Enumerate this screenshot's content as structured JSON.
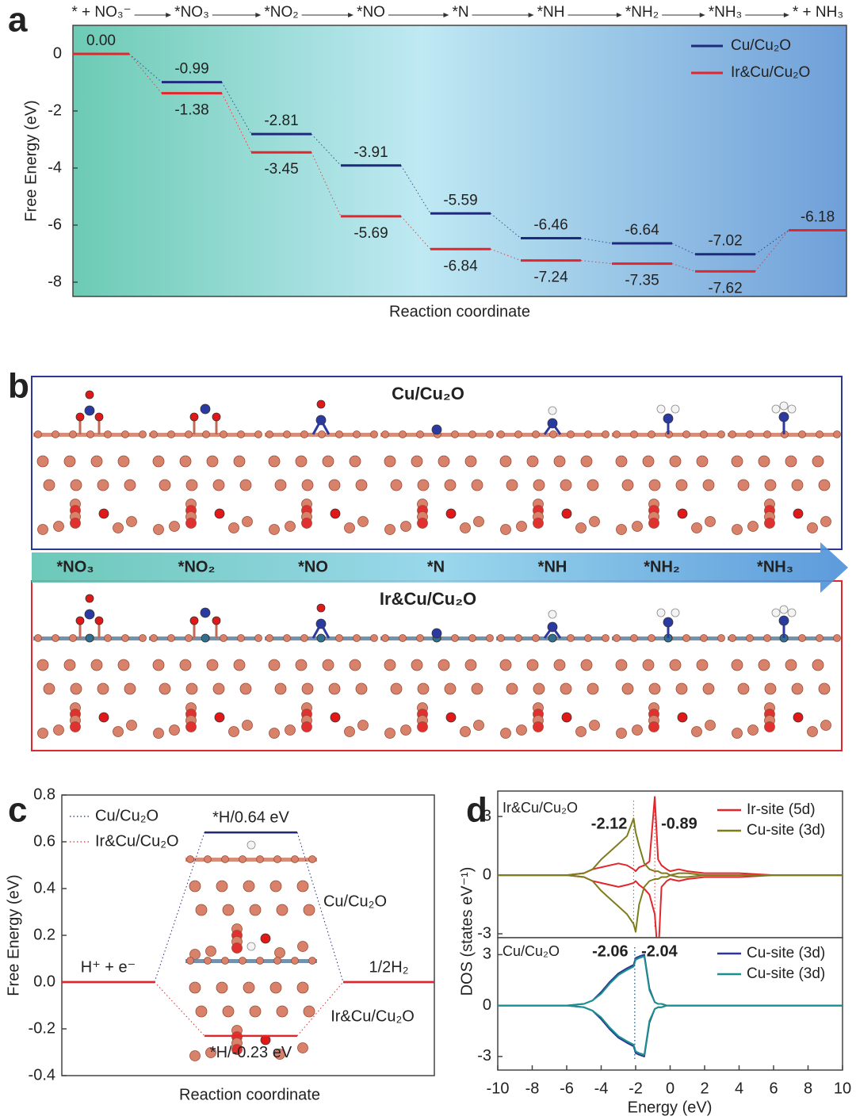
{
  "panel_labels": [
    "a",
    "b",
    "c",
    "d"
  ],
  "chart_data": [
    {
      "type": "energy_diagram",
      "categories": [
        "* + NO₃⁻",
        "*NO₃",
        "*NO₂",
        "*NO",
        "*N",
        "*NH",
        "*NH₂",
        "*NH₃",
        "* + NH₃"
      ],
      "ylabel": "Free Energy (eV)",
      "xlabel": "Reaction coordinate",
      "ylim": [
        -8.5,
        1.0
      ],
      "yticks": [
        -8,
        -6,
        -4,
        -2,
        0
      ],
      "legend": "upper right",
      "series": [
        {
          "name": "Cu/Cu₂O",
          "color": "#1f2a7c",
          "values": [
            0,
            -0.99,
            -2.81,
            -3.91,
            -5.59,
            -6.46,
            -6.64,
            -7.02,
            -6.18
          ],
          "value_labels": [
            null,
            "-0.99",
            "-2.81",
            "-3.91",
            "-5.59",
            "-6.46",
            "-6.64",
            "-7.02",
            null
          ]
        },
        {
          "name": "Ir&Cu/Cu₂O",
          "color": "#e3262b",
          "values": [
            0,
            -1.38,
            -3.45,
            -5.69,
            -6.84,
            -7.24,
            -7.35,
            -7.62,
            -6.18
          ],
          "value_labels": [
            "0.00",
            "-1.38",
            "-3.45",
            "-5.69",
            "-6.84",
            "-7.24",
            "-7.35",
            "-7.62",
            "-6.18"
          ]
        }
      ]
    },
    {
      "type": "energy_diagram",
      "categories": [
        "H⁺ + e⁻",
        null,
        "1/2H₂"
      ],
      "ylabel": "Free Energy (eV)",
      "xlabel": "Reaction coordinate",
      "ylim": [
        -0.4,
        0.8
      ],
      "yticks": [
        -0.4,
        -0.2,
        {
          "value": 0,
          "label": "0.0"
        },
        0.2,
        0.4,
        0.6,
        0.8
      ],
      "legend": "upper left",
      "structure_labels": [
        "Cu/Cu₂O",
        "Ir&Cu/Cu₂O"
      ],
      "series": [
        {
          "name": "Cu/Cu₂O",
          "color": "#1f2a7c",
          "values": [
            0,
            0.64,
            0
          ],
          "value_labels": [
            null,
            "*H/0.64 eV",
            null
          ]
        },
        {
          "name": "Ir&Cu/Cu₂O",
          "color": "#e3262b",
          "values": [
            0,
            -0.23,
            0
          ],
          "value_labels": [
            null,
            "*H/-0.23 eV",
            null
          ]
        }
      ]
    },
    {
      "type": "dos",
      "xlabel": "Energy (eV)",
      "ylabel": "DOS (states eV⁻¹)",
      "xlim": [
        -10,
        10
      ],
      "xticks": [
        -10,
        -8,
        -6,
        -4,
        -2,
        0,
        2,
        4,
        6,
        8,
        10
      ],
      "x": [
        -10,
        -6,
        -5,
        -4.5,
        -4,
        -3.5,
        -3,
        -2.5,
        -2.12,
        -2,
        -1.8,
        -1.5,
        -1.2,
        -0.89,
        -0.7,
        -0.5,
        -0.2,
        0,
        0.5,
        1,
        2,
        4,
        6,
        8,
        10
      ],
      "panels": [
        {
          "title": "Ir&Cu/Cu₂O",
          "ylim": [
            -3.2,
            4.3
          ],
          "yticks": [
            -3,
            0,
            3
          ],
          "series": [
            {
              "name": "Ir-site (5d)",
              "color": "#e3262b",
              "peak": -0.89,
              "values": [
                0,
                0,
                0.1,
                0.3,
                0.4,
                0.5,
                0.6,
                0.5,
                0.3,
                0.2,
                0.4,
                0.5,
                0.7,
                4.0,
                0.8,
                0.5,
                0.3,
                0.2,
                0.3,
                0.2,
                0.1,
                0.1,
                0,
                0,
                0
              ],
              "values_down": [
                0,
                0,
                -0.1,
                -0.3,
                -0.4,
                -0.5,
                -0.6,
                -0.5,
                -0.4,
                -0.3,
                -0.5,
                -0.7,
                -1.0,
                -2.0,
                -4.3,
                -0.6,
                -0.3,
                -0.2,
                -0.3,
                -0.2,
                -0.1,
                -0.1,
                0,
                0,
                0
              ]
            },
            {
              "name": "Cu-site (3d)",
              "color": "#7d7d1e",
              "peak": -2.12,
              "values": [
                0,
                0,
                0.1,
                0.3,
                0.8,
                1.2,
                1.6,
                2.0,
                2.9,
                2.2,
                1.5,
                0.6,
                0.3,
                0.2,
                0.2,
                0.1,
                0.1,
                0,
                0.1,
                0.1,
                0,
                0,
                0,
                0,
                0
              ],
              "values_down": [
                0,
                0,
                -0.1,
                -0.3,
                -0.8,
                -1.2,
                -1.6,
                -2.0,
                -2.5,
                -2.9,
                -1.5,
                -0.6,
                -0.3,
                -0.2,
                -0.2,
                -0.1,
                -0.1,
                0,
                -0.1,
                -0.1,
                0,
                0,
                0,
                0,
                0
              ]
            }
          ]
        },
        {
          "title": "Cu/Cu₂O",
          "ylim": [
            -3.8,
            4.0
          ],
          "yticks": [
            -3,
            0,
            3
          ],
          "series": [
            {
              "name": "Cu-site (3d)",
              "color": "#2b3990",
              "peak": -2.06,
              "values": [
                0,
                0,
                0.1,
                0.3,
                0.8,
                1.4,
                1.9,
                2.2,
                2.4,
                2.8,
                2.9,
                3.0,
                1.0,
                0.2,
                0.1,
                0.1,
                0,
                0,
                0,
                0,
                0,
                0,
                0,
                0,
                0
              ],
              "values_down": [
                0,
                0,
                -0.1,
                -0.3,
                -0.8,
                -1.4,
                -1.9,
                -2.2,
                -2.4,
                -2.8,
                -2.9,
                -3.0,
                -1.0,
                -0.2,
                -0.1,
                -0.1,
                0,
                0,
                0,
                0,
                0,
                0,
                0,
                0,
                0
              ]
            },
            {
              "name": "Cu-site (3d)",
              "color": "#1a9090",
              "peak": -2.04,
              "values": [
                0,
                0,
                0.1,
                0.3,
                0.7,
                1.3,
                1.8,
                2.1,
                2.3,
                2.7,
                2.8,
                2.9,
                0.9,
                0.2,
                0.1,
                0.1,
                0,
                0,
                0,
                0,
                0,
                0,
                0,
                0,
                0
              ],
              "values_down": [
                0,
                0,
                -0.1,
                -0.3,
                -0.7,
                -1.3,
                -1.8,
                -2.1,
                -2.3,
                -2.7,
                -2.8,
                -2.9,
                -0.9,
                -0.2,
                -0.1,
                -0.1,
                0,
                0,
                0,
                0,
                0,
                0,
                0,
                0,
                0
              ]
            }
          ]
        }
      ]
    }
  ],
  "panel_b": {
    "rows": [
      "Cu/Cu₂O",
      "Ir&Cu/Cu₂O"
    ],
    "steps": [
      "*NO₃",
      "*NO₂",
      "*NO",
      "*N",
      "*NH",
      "*NH₂",
      "*NH₃"
    ]
  }
}
